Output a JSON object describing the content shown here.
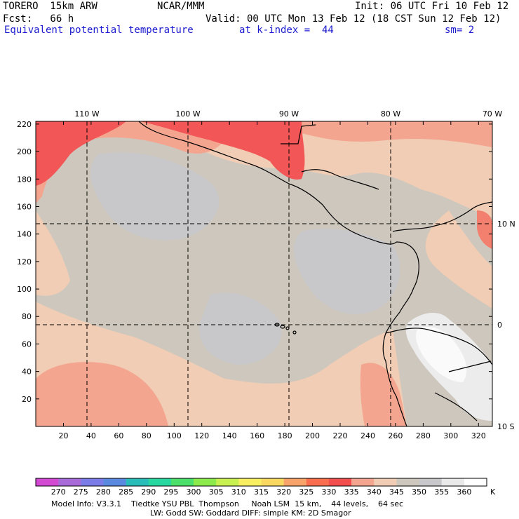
{
  "header": {
    "model": "TORERO  15km ARW",
    "center": "NCAR/MMM",
    "init": "Init: 06 UTC Fri 10 Feb 12",
    "fcst": "Fcst:   66 h",
    "valid": "Valid: 00 UTC Mon 13 Feb 12 (18 CST Sun 12 Feb 12)",
    "field": "Equivalent potential temperature",
    "level": "at k-index =  44",
    "smooth": "sm= 2"
  },
  "map": {
    "lon_labels": [
      "110 W",
      "100 W",
      "90 W",
      "80 W",
      "70 W"
    ],
    "lat_labels": [
      "10 N",
      "0",
      "10 S"
    ],
    "x_ticks": [
      "20",
      "40",
      "60",
      "80",
      "100",
      "120",
      "140",
      "160",
      "180",
      "200",
      "220",
      "240",
      "260",
      "280",
      "300",
      "320"
    ],
    "y_ticks": [
      "220",
      "200",
      "180",
      "160",
      "140",
      "120",
      "100",
      "80",
      "60",
      "40",
      "20"
    ],
    "colors": {
      "bg_main": "#cec7bd",
      "light_gray": "#c8c8ca",
      "peach": "#f0cdb4",
      "salmon": "#f4a590",
      "red": "#f25656",
      "coral": "#f3806e",
      "whitish": "#ececec",
      "white": "#fafafa",
      "grid": "#000000",
      "coast": "#000000"
    }
  },
  "colorbar": {
    "labels": [
      "270",
      "275",
      "280",
      "285",
      "290",
      "295",
      "300",
      "305",
      "310",
      "315",
      "320",
      "325",
      "330",
      "335",
      "340",
      "345",
      "350",
      "355",
      "360"
    ],
    "unit": "K",
    "colors": [
      "#d24ad2",
      "#a86ad8",
      "#7c7ce8",
      "#5a8ae0",
      "#29bcb8",
      "#28d8a0",
      "#4ce06a",
      "#8ceb4c",
      "#c8f050",
      "#f8f062",
      "#f8d860",
      "#f8a36a",
      "#f86e4e",
      "#f24e4e",
      "#f4a590",
      "#f0cdb4",
      "#cec7bd",
      "#c8c8ca",
      "#eaeaea",
      "#ffffff"
    ]
  },
  "footer": {
    "line1": "Model Info: V3.3.1    Tiedtke YSU PBL  Thompson     Noah LSM  15 km,    44 levels,    64 sec",
    "line2": "LW: Godd SW: Goddard DIFF: simple KM: 2D Smagor"
  }
}
